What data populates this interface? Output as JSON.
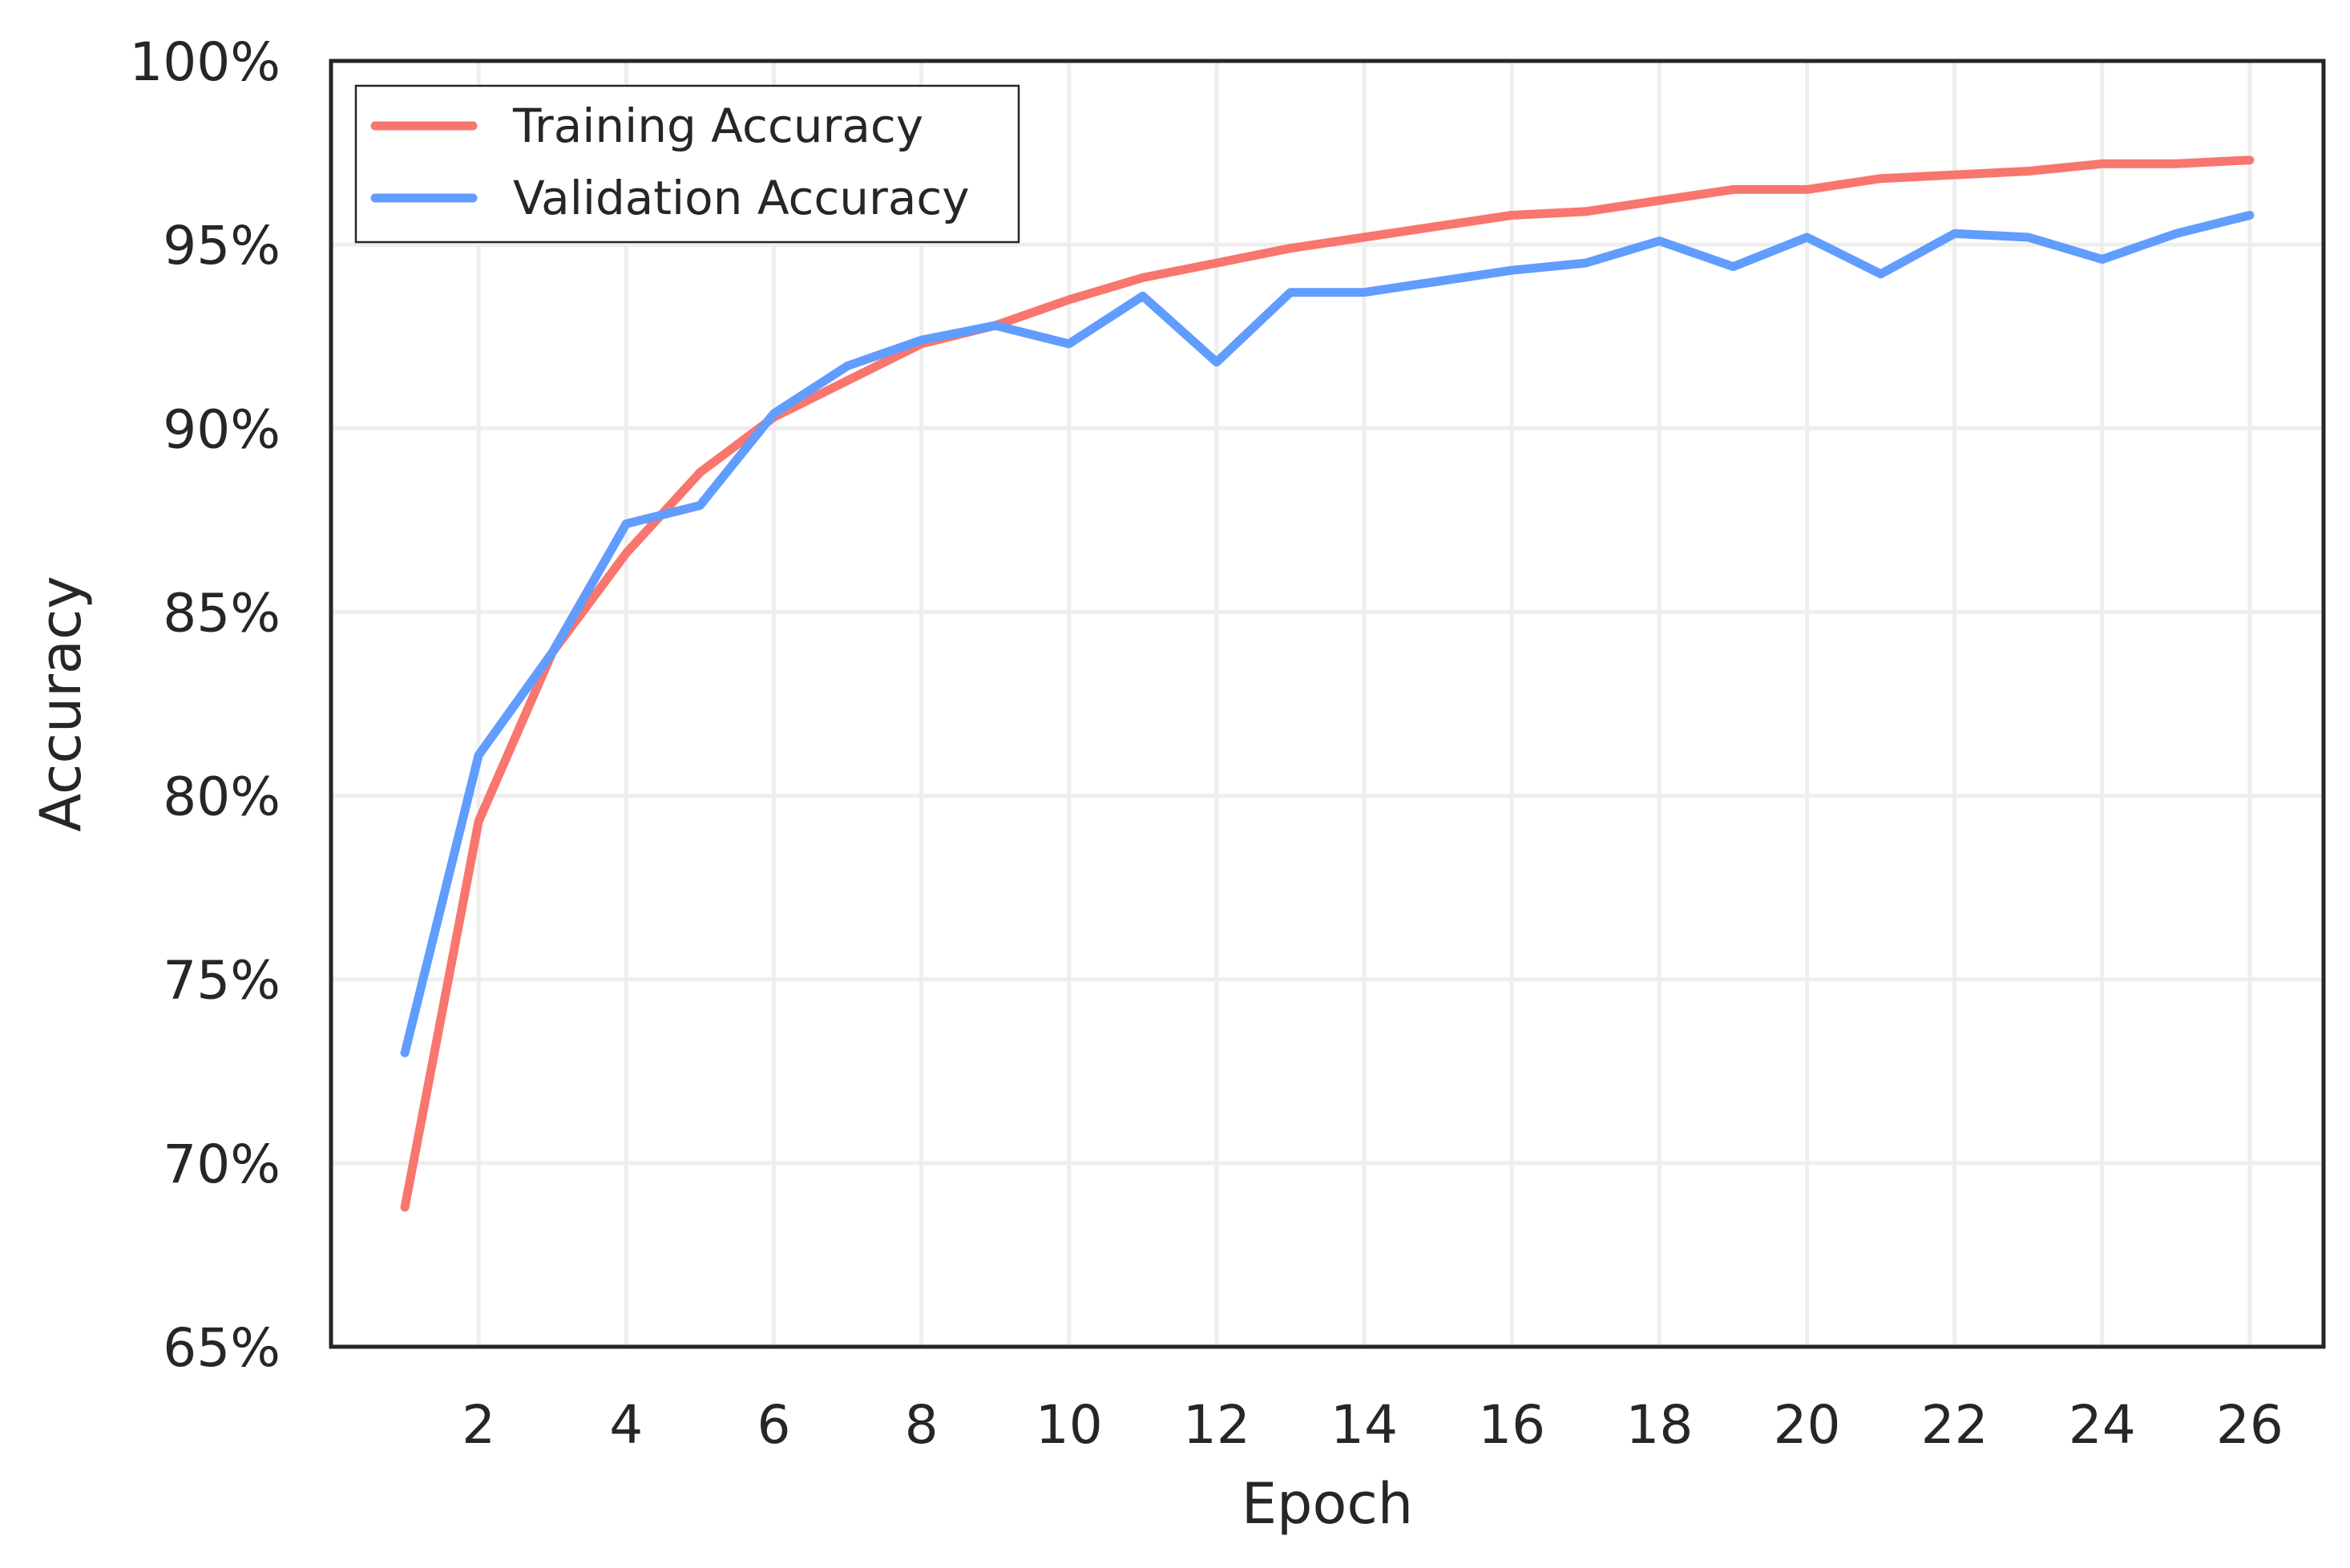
{
  "chart_data": {
    "type": "line",
    "title": "",
    "xlabel": "Epoch",
    "ylabel": "Accuracy",
    "xlim": [
      0,
      27
    ],
    "ylim": [
      0.65,
      1.0
    ],
    "x_ticks": [
      2,
      4,
      6,
      8,
      10,
      12,
      14,
      16,
      18,
      20,
      22,
      24,
      26
    ],
    "y_ticks": [
      0.65,
      0.7,
      0.75,
      0.8,
      0.85,
      0.9,
      0.95,
      1.0
    ],
    "y_tick_labels": [
      "65%",
      "70%",
      "75%",
      "80%",
      "85%",
      "90%",
      "95%",
      "100%"
    ],
    "grid": true,
    "legend_position": "top-left",
    "x": [
      1,
      2,
      3,
      4,
      5,
      6,
      7,
      8,
      9,
      10,
      11,
      12,
      13,
      14,
      15,
      16,
      17,
      18,
      19,
      20,
      21,
      22,
      23,
      24,
      25,
      26
    ],
    "series": [
      {
        "name": "Training Accuracy",
        "color": "#f8766d",
        "values": [
          0.688,
          0.793,
          0.839,
          0.866,
          0.888,
          0.903,
          0.913,
          0.923,
          0.928,
          0.935,
          0.941,
          0.945,
          0.949,
          0.952,
          0.955,
          0.958,
          0.959,
          0.962,
          0.965,
          0.965,
          0.968,
          0.969,
          0.97,
          0.972,
          0.972,
          0.973
        ]
      },
      {
        "name": "Validation Accuracy",
        "color": "#619cff",
        "values": [
          0.73,
          0.811,
          0.839,
          0.874,
          0.879,
          0.904,
          0.917,
          0.924,
          0.928,
          0.923,
          0.936,
          0.918,
          0.937,
          0.937,
          0.94,
          0.943,
          0.945,
          0.951,
          0.944,
          0.952,
          0.942,
          0.953,
          0.952,
          0.946,
          0.953,
          0.958
        ]
      }
    ]
  }
}
